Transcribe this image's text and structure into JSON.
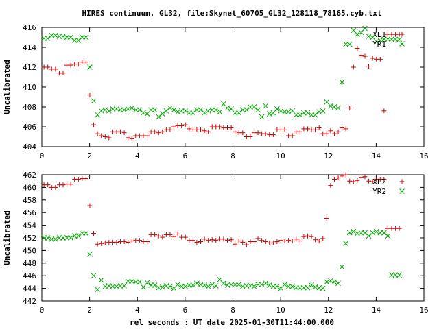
{
  "page_title": "HIRES continuum, GL32, file:Skynet_60705_GL32_128118_78165.cyb.txt",
  "x_axis_label": "rel seconds : UT date 2025-01-30T11:44:00.000",
  "chart_data": [
    {
      "type": "scatter",
      "ylabel": "Uncalibrated",
      "xlim": [
        0,
        16
      ],
      "ylim": [
        404,
        416
      ],
      "xticks": [
        0,
        2,
        4,
        6,
        8,
        10,
        12,
        14,
        16
      ],
      "yticks": [
        404,
        406,
        408,
        410,
        412,
        414,
        416
      ],
      "legend_position": "top-right",
      "series": [
        {
          "name": "XL1",
          "color": "#cc0000",
          "marker": "plus",
          "x": [
            0.09,
            0.25,
            0.41,
            0.57,
            0.73,
            0.89,
            1.05,
            1.21,
            1.37,
            1.53,
            1.69,
            1.85,
            2.01,
            2.17,
            2.33,
            2.49,
            2.65,
            2.81,
            2.97,
            3.13,
            3.29,
            3.45,
            3.61,
            3.77,
            3.93,
            4.09,
            4.25,
            4.41,
            4.57,
            4.73,
            4.89,
            5.05,
            5.21,
            5.37,
            5.53,
            5.69,
            5.85,
            6.01,
            6.17,
            6.33,
            6.49,
            6.65,
            6.81,
            6.97,
            7.13,
            7.29,
            7.45,
            7.61,
            7.77,
            7.93,
            8.09,
            8.25,
            8.41,
            8.57,
            8.73,
            8.89,
            9.05,
            9.21,
            9.37,
            9.53,
            9.69,
            9.85,
            10.01,
            10.17,
            10.33,
            10.49,
            10.65,
            10.81,
            10.97,
            11.13,
            11.29,
            11.45,
            11.61,
            11.77,
            11.93,
            12.09,
            12.25,
            12.41,
            12.57,
            12.73,
            12.89,
            13.05,
            13.21,
            13.37,
            13.53,
            13.69,
            13.85,
            14.01,
            14.17,
            14.33,
            14.49,
            14.65,
            14.81,
            14.97
          ],
          "y": [
            412.0,
            412.0,
            411.8,
            411.8,
            411.4,
            411.4,
            412.2,
            412.2,
            412.3,
            412.3,
            412.5,
            412.5,
            409.2,
            406.2,
            405.3,
            405.1,
            405.0,
            404.9,
            405.5,
            405.5,
            405.5,
            405.4,
            404.9,
            404.8,
            405.1,
            405.1,
            405.1,
            405.1,
            405.5,
            405.5,
            405.4,
            405.5,
            405.7,
            405.7,
            406.0,
            406.1,
            406.1,
            406.2,
            405.8,
            405.7,
            405.7,
            405.7,
            405.6,
            405.5,
            406.0,
            406.0,
            406.0,
            405.9,
            405.9,
            405.9,
            405.5,
            405.4,
            405.4,
            405.0,
            405.0,
            405.4,
            405.4,
            405.3,
            405.3,
            405.2,
            405.2,
            405.7,
            405.7,
            405.7,
            405.1,
            405.1,
            405.5,
            405.5,
            405.8,
            405.8,
            405.7,
            405.7,
            405.9,
            405.3,
            405.3,
            405.6,
            405.3,
            405.5,
            405.9,
            405.8,
            407.9,
            412.0,
            413.9,
            413.2,
            413.1,
            412.1,
            412.9,
            412.8,
            412.8,
            407.6,
            415.3,
            415.3,
            415.3,
            415.3
          ]
        },
        {
          "name": "YR1",
          "color": "#00aa00",
          "marker": "x",
          "x": [
            0.09,
            0.25,
            0.41,
            0.57,
            0.73,
            0.89,
            1.05,
            1.21,
            1.37,
            1.53,
            1.69,
            1.85,
            2.01,
            2.17,
            2.33,
            2.49,
            2.65,
            2.81,
            2.97,
            3.13,
            3.29,
            3.45,
            3.61,
            3.77,
            3.93,
            4.09,
            4.25,
            4.41,
            4.57,
            4.73,
            4.89,
            5.05,
            5.21,
            5.37,
            5.53,
            5.69,
            5.85,
            6.01,
            6.17,
            6.33,
            6.49,
            6.65,
            6.81,
            6.97,
            7.13,
            7.29,
            7.45,
            7.61,
            7.77,
            7.93,
            8.09,
            8.25,
            8.41,
            8.57,
            8.73,
            8.89,
            9.05,
            9.21,
            9.37,
            9.53,
            9.69,
            9.85,
            10.01,
            10.17,
            10.33,
            10.49,
            10.65,
            10.81,
            10.97,
            11.13,
            11.29,
            11.45,
            11.61,
            11.77,
            11.93,
            12.09,
            12.25,
            12.41,
            12.57,
            12.73,
            12.89,
            13.05,
            13.21,
            13.37,
            13.53,
            13.69,
            13.85,
            14.01,
            14.17,
            14.33,
            14.49,
            14.65,
            14.81,
            14.97
          ],
          "y": [
            414.9,
            414.9,
            415.2,
            415.2,
            415.1,
            415.1,
            415.0,
            415.0,
            414.7,
            414.7,
            415.0,
            415.0,
            412.0,
            408.6,
            407.2,
            407.6,
            407.7,
            407.6,
            407.8,
            407.8,
            407.7,
            407.7,
            407.8,
            407.9,
            407.7,
            407.7,
            407.4,
            407.3,
            407.7,
            407.7,
            407.0,
            407.3,
            407.6,
            407.9,
            407.7,
            407.5,
            407.6,
            407.6,
            407.4,
            407.4,
            407.7,
            407.7,
            407.4,
            407.6,
            407.7,
            407.7,
            407.5,
            408.3,
            407.9,
            407.8,
            407.4,
            407.4,
            407.7,
            407.7,
            408.0,
            408.0,
            407.7,
            407.0,
            408.1,
            407.3,
            407.4,
            407.8,
            407.6,
            407.5,
            407.5,
            407.6,
            407.2,
            407.2,
            407.4,
            407.4,
            407.2,
            407.2,
            407.5,
            407.6,
            408.5,
            408.1,
            408.0,
            407.9,
            410.5,
            414.3,
            414.3,
            415.7,
            415.3,
            415.5,
            415.9,
            415.1,
            415.0,
            414.6,
            414.7,
            414.8,
            414.8,
            414.8,
            414.8,
            414.8
          ]
        }
      ]
    },
    {
      "type": "scatter",
      "ylabel": "Uncalibrated",
      "xlim": [
        0,
        16
      ],
      "ylim": [
        442,
        462
      ],
      "xticks": [
        0,
        2,
        4,
        6,
        8,
        10,
        12,
        14,
        16
      ],
      "yticks": [
        442,
        444,
        446,
        448,
        450,
        452,
        454,
        456,
        458,
        460,
        462
      ],
      "legend_position": "top-right",
      "series": [
        {
          "name": "XL2",
          "color": "#cc0000",
          "marker": "plus",
          "x": [
            0.09,
            0.25,
            0.41,
            0.57,
            0.73,
            0.89,
            1.05,
            1.21,
            1.37,
            1.53,
            1.69,
            1.85,
            2.01,
            2.17,
            2.33,
            2.49,
            2.65,
            2.81,
            2.97,
            3.13,
            3.29,
            3.45,
            3.61,
            3.77,
            3.93,
            4.09,
            4.25,
            4.41,
            4.57,
            4.73,
            4.89,
            5.05,
            5.21,
            5.37,
            5.53,
            5.69,
            5.85,
            6.01,
            6.17,
            6.33,
            6.49,
            6.65,
            6.81,
            6.97,
            7.13,
            7.29,
            7.45,
            7.61,
            7.77,
            7.93,
            8.09,
            8.25,
            8.41,
            8.57,
            8.73,
            8.89,
            9.05,
            9.21,
            9.37,
            9.53,
            9.69,
            9.85,
            10.01,
            10.17,
            10.33,
            10.49,
            10.65,
            10.81,
            10.97,
            11.13,
            11.29,
            11.45,
            11.61,
            11.77,
            11.93,
            12.09,
            12.25,
            12.41,
            12.57,
            12.73,
            12.89,
            13.05,
            13.21,
            13.37,
            13.53,
            13.69,
            13.85,
            14.01,
            14.17,
            14.33,
            14.49,
            14.65,
            14.81,
            14.97
          ],
          "y": [
            460.4,
            460.4,
            460.0,
            460.0,
            460.4,
            460.4,
            460.5,
            460.5,
            461.3,
            461.3,
            461.4,
            461.4,
            457.1,
            452.7,
            451.0,
            451.1,
            451.2,
            451.3,
            451.3,
            451.3,
            451.4,
            451.4,
            451.3,
            451.5,
            451.6,
            451.6,
            451.4,
            451.4,
            452.5,
            452.5,
            452.3,
            452.1,
            452.5,
            452.5,
            452.2,
            452.6,
            452.1,
            452.1,
            451.6,
            451.6,
            451.3,
            451.4,
            451.8,
            451.6,
            451.7,
            451.6,
            451.8,
            451.8,
            451.6,
            451.7,
            451.0,
            451.5,
            451.3,
            450.9,
            451.4,
            451.4,
            451.9,
            451.6,
            451.4,
            451.2,
            451.2,
            451.4,
            451.6,
            451.5,
            451.6,
            451.5,
            451.8,
            451.5,
            452.2,
            452.3,
            452.2,
            451.7,
            451.5,
            451.9,
            455.1,
            460.3,
            461.3,
            461.5,
            461.8,
            462.0,
            461.0,
            460.9,
            461.1,
            461.6,
            461.7,
            461.0,
            460.9,
            461.3,
            461.3,
            461.3,
            453.5,
            453.5,
            453.5,
            453.5
          ]
        },
        {
          "name": "YR2",
          "color": "#00aa00",
          "marker": "x",
          "x": [
            0.09,
            0.25,
            0.41,
            0.57,
            0.73,
            0.89,
            1.05,
            1.21,
            1.37,
            1.53,
            1.69,
            1.85,
            2.01,
            2.17,
            2.33,
            2.49,
            2.65,
            2.81,
            2.97,
            3.13,
            3.29,
            3.45,
            3.61,
            3.77,
            3.93,
            4.09,
            4.25,
            4.41,
            4.57,
            4.73,
            4.89,
            5.05,
            5.21,
            5.37,
            5.53,
            5.69,
            5.85,
            6.01,
            6.17,
            6.33,
            6.49,
            6.65,
            6.81,
            6.97,
            7.13,
            7.29,
            7.45,
            7.61,
            7.77,
            7.93,
            8.09,
            8.25,
            8.41,
            8.57,
            8.73,
            8.89,
            9.05,
            9.21,
            9.37,
            9.53,
            9.69,
            9.85,
            10.01,
            10.17,
            10.33,
            10.49,
            10.65,
            10.81,
            10.97,
            11.13,
            11.29,
            11.45,
            11.61,
            11.77,
            11.93,
            12.09,
            12.25,
            12.41,
            12.57,
            12.73,
            12.89,
            13.05,
            13.21,
            13.37,
            13.53,
            13.69,
            13.85,
            14.01,
            14.17,
            14.33,
            14.49,
            14.65,
            14.81,
            14.97
          ],
          "y": [
            452.0,
            452.0,
            451.8,
            451.8,
            452.0,
            452.0,
            452.0,
            452.0,
            452.3,
            452.3,
            452.7,
            452.7,
            449.4,
            446.0,
            443.8,
            445.3,
            444.3,
            444.4,
            444.3,
            444.3,
            444.4,
            444.4,
            445.1,
            445.1,
            445.0,
            445.0,
            444.2,
            444.9,
            444.5,
            444.5,
            444.1,
            444.2,
            444.4,
            444.3,
            444.0,
            444.6,
            444.3,
            444.3,
            444.5,
            444.5,
            444.8,
            444.6,
            444.5,
            444.3,
            444.6,
            444.4,
            445.4,
            444.8,
            444.5,
            444.6,
            444.6,
            444.6,
            444.3,
            444.4,
            444.4,
            444.3,
            444.6,
            444.6,
            444.8,
            444.5,
            444.3,
            444.3,
            444.0,
            444.6,
            444.3,
            444.3,
            444.1,
            444.1,
            444.1,
            444.1,
            444.5,
            444.2,
            444.1,
            444.0,
            445.0,
            445.2,
            445.0,
            444.8,
            447.4,
            451.1,
            452.8,
            453.0,
            452.7,
            452.8,
            452.8,
            452.3,
            452.8,
            453.0,
            452.8,
            452.8,
            452.3,
            446.1,
            446.1,
            446.1
          ]
        }
      ]
    }
  ]
}
